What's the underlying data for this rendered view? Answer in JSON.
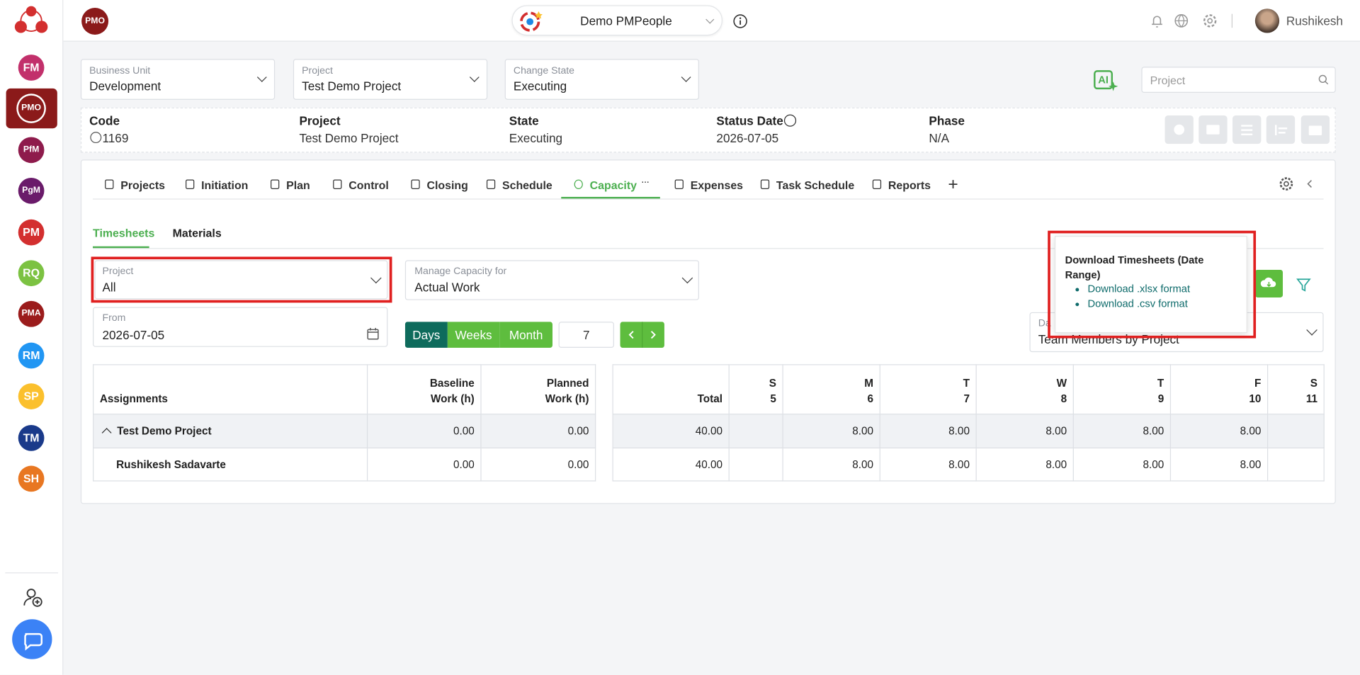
{
  "sidebar": {
    "items": [
      {
        "label": "FM",
        "color": "#c2306b"
      },
      {
        "label": "PMO",
        "color": "#8b1a1a"
      },
      {
        "label": "PfM",
        "color": "#8e1b4c"
      },
      {
        "label": "PgM",
        "color": "#6a1b6a"
      },
      {
        "label": "PM",
        "color": "#d32f2f"
      },
      {
        "label": "RQ",
        "color": "#7cc242"
      },
      {
        "label": "PMA",
        "color": "#9b1c1c"
      },
      {
        "label": "RM",
        "color": "#2196f3"
      },
      {
        "label": "SP",
        "color": "#fbc02d"
      },
      {
        "label": "TM",
        "color": "#1a3a8a"
      },
      {
        "label": "SH",
        "color": "#e87722"
      }
    ],
    "selected_index": 1
  },
  "header": {
    "badge": "PMO",
    "workspace": "Demo PMPeople",
    "user": "Rushikesh"
  },
  "filters": [
    {
      "label": "Business Unit",
      "value": "Development"
    },
    {
      "label": "Project",
      "value": "Test Demo Project"
    },
    {
      "label": "Change State",
      "value": "Executing"
    }
  ],
  "ai_button": "AI",
  "search_placeholder": "Project",
  "summary": [
    {
      "label": "Code",
      "value": "1169"
    },
    {
      "label": "Project",
      "value": "Test Demo Project"
    },
    {
      "label": "State",
      "value": "Executing"
    },
    {
      "label": "Status Date",
      "value": "2026-07-05"
    },
    {
      "label": "Phase",
      "value": "N/A"
    }
  ],
  "tabs": {
    "items": [
      "Projects",
      "Initiation",
      "Plan",
      "Control",
      "Closing",
      "Schedule",
      "Capacity",
      "Expenses",
      "Task Schedule",
      "Reports"
    ],
    "active_index": 6
  },
  "subtabs": {
    "items": [
      "Timesheets",
      "Materials"
    ],
    "active_index": 0
  },
  "controls": {
    "project": {
      "label": "Project",
      "value": "All"
    },
    "manage": {
      "label": "Manage Capacity for",
      "value": "Actual Work"
    },
    "from": {
      "label": "From",
      "value": "2026-07-05"
    },
    "periods": [
      "Days",
      "Weeks",
      "Month"
    ],
    "count": "7",
    "display": {
      "label": "Da",
      "value": "Team Members by Project"
    }
  },
  "popup": {
    "title": "Download Timesheets (Date Range)",
    "links": [
      "Download .xlsx format",
      "Download .csv format"
    ]
  },
  "timesheet": {
    "left_headers": [
      [
        "Assignments"
      ],
      [
        "Baseline",
        "Work (h)"
      ],
      [
        "Planned",
        "Work (h)"
      ]
    ],
    "right_headers": [
      [
        "Total"
      ],
      [
        "S",
        "5"
      ],
      [
        "M",
        "6"
      ],
      [
        "T",
        "7"
      ],
      [
        "W",
        "8"
      ],
      [
        "T",
        "9"
      ],
      [
        "F",
        "10"
      ],
      [
        "S",
        "11"
      ]
    ],
    "rows": [
      {
        "name": "Test Demo Project",
        "baseline": "0.00",
        "planned": "0.00",
        "total": "40.00",
        "days": [
          null,
          "8.00",
          "8.00",
          "8.00",
          "8.00",
          "8.00",
          null
        ]
      },
      {
        "name": "Rushikesh Sadavarte",
        "baseline": "0.00",
        "planned": "0.00",
        "total": "40.00",
        "days": [
          null,
          "8.00",
          "8.00",
          "8.00",
          "8.00",
          "8.00",
          null
        ]
      }
    ]
  }
}
